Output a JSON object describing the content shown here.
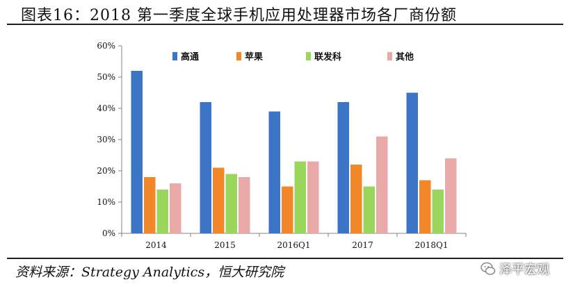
{
  "page": {
    "title": "图表16：2018 第一季度全球手机应用处理器市场各厂商份额",
    "source": "资料来源：Strategy Analytics，恒大研究院",
    "watermark": "泽平宏观"
  },
  "chart_data": {
    "type": "bar",
    "categories": [
      "2014",
      "2015",
      "2016Q1",
      "2017",
      "2018Q1"
    ],
    "series": [
      {
        "name": "高通",
        "values": [
          52,
          42,
          39,
          42,
          45
        ],
        "color": "#3d75c6"
      },
      {
        "name": "苹果",
        "values": [
          18,
          21,
          15,
          22,
          17
        ],
        "color": "#f2872a"
      },
      {
        "name": "联发科",
        "values": [
          14,
          19,
          23,
          15,
          14
        ],
        "color": "#9bd65c"
      },
      {
        "name": "其他",
        "values": [
          16,
          18,
          23,
          31,
          24
        ],
        "color": "#e8a9a8"
      }
    ],
    "ylim": [
      0,
      60
    ],
    "yticks": [
      "0%",
      "10%",
      "20%",
      "30%",
      "40%",
      "50%",
      "60%"
    ],
    "legend_position": "top",
    "grid": false
  }
}
